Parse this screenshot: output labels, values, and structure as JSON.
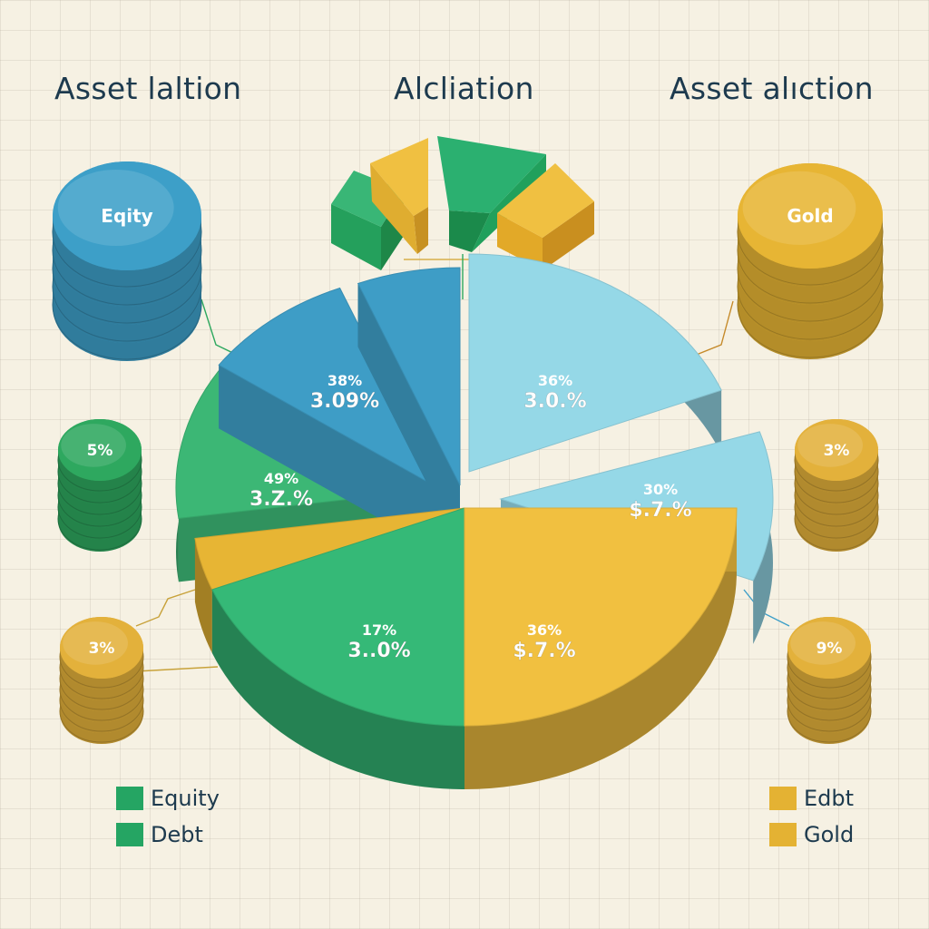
{
  "titles": {
    "left": "Asset laltion",
    "center": "Alcliation",
    "right": "Asset alıction"
  },
  "stacks": {
    "equity": {
      "label": "Eqity",
      "color": "#3d9fc8"
    },
    "gold_top": {
      "label": "Gold",
      "color": "#e7b534"
    },
    "left_mid": {
      "label": "5%",
      "color": "#2ea85f"
    },
    "right_mid": {
      "label": "3%",
      "color": "#e3b13b"
    },
    "left_bottom": {
      "label": "3%",
      "color": "#e3b13b"
    },
    "right_bottom": {
      "label": "9%",
      "color": "#e3b13b"
    }
  },
  "chart_data": {
    "type": "pie",
    "slices": [
      {
        "name": "",
        "label_top": "38%",
        "label_main": "3.09%",
        "color": "#3e9dc6"
      },
      {
        "name": "",
        "label_top": "",
        "label_main": "",
        "color": "#3e9dc6"
      },
      {
        "name": "",
        "label_top": "36%",
        "label_main": "3.0.%",
        "color": "#95d8e7"
      },
      {
        "name": "",
        "label_top": "30%",
        "label_main": "$.7.%",
        "color": "#95d8e7"
      },
      {
        "name": "",
        "label_top": "36%",
        "label_main": "$.7.%",
        "color": "#f1c040"
      },
      {
        "name": "",
        "label_top": "17%",
        "label_main": "3..0%",
        "color": "#35b977"
      },
      {
        "name": "",
        "label_top": "",
        "label_main": "",
        "color": "#e7b534"
      },
      {
        "name": "",
        "label_top": "49%",
        "label_main": "3.Z.%",
        "color": "#3cb775"
      }
    ],
    "legend": [
      {
        "label": "Equity",
        "color": "#25a563"
      },
      {
        "label": "Debt",
        "color": "#25a563"
      },
      {
        "label": "Edbt",
        "color": "#e4b233"
      },
      {
        "label": "Gold",
        "color": "#e4b233"
      }
    ]
  }
}
